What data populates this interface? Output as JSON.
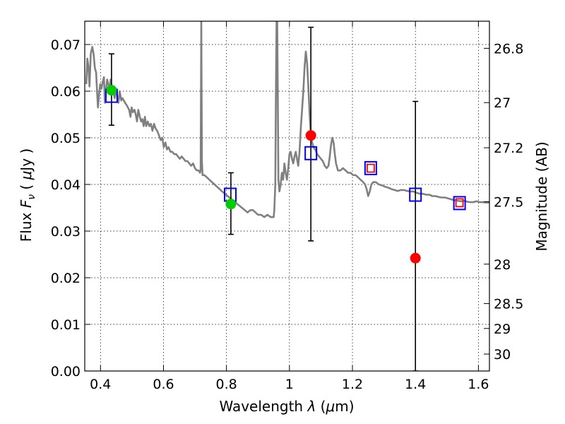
{
  "chart_data": {
    "type": "scatter",
    "xlabel": "Wavelength  λ (μm)",
    "ylabel": "Flux  Fν  ( μJy )",
    "y2label": "Magnitude (AB)",
    "xlim": [
      0.35,
      1.635
    ],
    "ylim": [
      0.0,
      0.075
    ],
    "grid": true,
    "x_ticks": [
      0.4,
      0.6,
      0.8,
      1.0,
      1.2,
      1.4,
      1.6
    ],
    "x_tick_labels": [
      "0.4",
      "0.6",
      "0.8",
      "1",
      "1.2",
      "1.4",
      "1.6"
    ],
    "y_ticks": [
      0.0,
      0.01,
      0.02,
      0.03,
      0.04,
      0.05,
      0.06,
      0.07
    ],
    "y_tick_labels": [
      "0.00",
      "0.01",
      "0.02",
      "0.03",
      "0.04",
      "0.05",
      "0.06",
      "0.07"
    ],
    "y2_ticks": [
      26.8,
      27.0,
      27.2,
      27.5,
      28.0,
      28.5,
      29.0,
      30.0
    ],
    "y2_tick_labels": [
      "26.8",
      "27",
      "27.2",
      "27.5",
      "28",
      "28.5",
      "29",
      "30"
    ],
    "series": [
      {
        "marker": "line",
        "color": "#808080",
        "points": [
          [
            0.355,
            0.0615
          ],
          [
            0.358,
            0.067
          ],
          [
            0.362,
            0.065
          ],
          [
            0.365,
            0.061
          ],
          [
            0.369,
            0.068
          ],
          [
            0.374,
            0.0695
          ],
          [
            0.378,
            0.068
          ],
          [
            0.382,
            0.065
          ],
          [
            0.386,
            0.064
          ],
          [
            0.389,
            0.06
          ],
          [
            0.392,
            0.0565
          ],
          [
            0.395,
            0.059
          ],
          [
            0.399,
            0.0615
          ],
          [
            0.403,
            0.0605
          ],
          [
            0.407,
            0.062
          ],
          [
            0.411,
            0.063
          ],
          [
            0.414,
            0.0575
          ],
          [
            0.417,
            0.06
          ],
          [
            0.421,
            0.0625
          ],
          [
            0.425,
            0.0615
          ],
          [
            0.429,
            0.06
          ],
          [
            0.432,
            0.0625
          ],
          [
            0.436,
            0.0605
          ],
          [
            0.441,
            0.06
          ],
          [
            0.445,
            0.0585
          ],
          [
            0.449,
            0.0605
          ],
          [
            0.453,
            0.059
          ],
          [
            0.457,
            0.0575
          ],
          [
            0.461,
            0.06
          ],
          [
            0.466,
            0.058
          ],
          [
            0.47,
            0.0585
          ],
          [
            0.474,
            0.058
          ],
          [
            0.478,
            0.0575
          ],
          [
            0.483,
            0.057
          ],
          [
            0.487,
            0.0565
          ],
          [
            0.491,
            0.056
          ],
          [
            0.495,
            0.0545
          ],
          [
            0.499,
            0.0565
          ],
          [
            0.503,
            0.0555
          ],
          [
            0.508,
            0.056
          ],
          [
            0.512,
            0.055
          ],
          [
            0.516,
            0.0535
          ],
          [
            0.52,
            0.056
          ],
          [
            0.525,
            0.0545
          ],
          [
            0.529,
            0.0535
          ],
          [
            0.533,
            0.054
          ],
          [
            0.537,
            0.0525
          ],
          [
            0.541,
            0.0545
          ],
          [
            0.545,
            0.0525
          ],
          [
            0.55,
            0.0535
          ],
          [
            0.555,
            0.0525
          ],
          [
            0.56,
            0.053
          ],
          [
            0.565,
            0.0515
          ],
          [
            0.57,
            0.053
          ],
          [
            0.575,
            0.052
          ],
          [
            0.58,
            0.0515
          ],
          [
            0.586,
            0.0505
          ],
          [
            0.591,
            0.0495
          ],
          [
            0.596,
            0.05
          ],
          [
            0.601,
            0.048
          ],
          [
            0.606,
            0.049
          ],
          [
            0.611,
            0.0475
          ],
          [
            0.616,
            0.048
          ],
          [
            0.622,
            0.047
          ],
          [
            0.628,
            0.047
          ],
          [
            0.634,
            0.0465
          ],
          [
            0.64,
            0.0465
          ],
          [
            0.646,
            0.046
          ],
          [
            0.652,
            0.0455
          ],
          [
            0.658,
            0.046
          ],
          [
            0.664,
            0.0455
          ],
          [
            0.67,
            0.045
          ],
          [
            0.676,
            0.045
          ],
          [
            0.682,
            0.0445
          ],
          [
            0.688,
            0.044
          ],
          [
            0.694,
            0.0445
          ],
          [
            0.7,
            0.0435
          ],
          [
            0.706,
            0.043
          ],
          [
            0.712,
            0.043
          ],
          [
            0.716,
            0.0425
          ],
          [
            0.718,
            0.043
          ],
          [
            0.72,
            0.075
          ],
          [
            0.722,
            0.045
          ],
          [
            0.724,
            0.042
          ],
          [
            0.73,
            0.042
          ],
          [
            0.738,
            0.0415
          ],
          [
            0.746,
            0.041
          ],
          [
            0.754,
            0.0405
          ],
          [
            0.762,
            0.04
          ],
          [
            0.77,
            0.0395
          ],
          [
            0.778,
            0.039
          ],
          [
            0.786,
            0.0385
          ],
          [
            0.795,
            0.038
          ],
          [
            0.804,
            0.0375
          ],
          [
            0.813,
            0.037
          ],
          [
            0.822,
            0.0365
          ],
          [
            0.831,
            0.036
          ],
          [
            0.84,
            0.0355
          ],
          [
            0.849,
            0.035
          ],
          [
            0.858,
            0.0345
          ],
          [
            0.867,
            0.034
          ],
          [
            0.876,
            0.0345
          ],
          [
            0.884,
            0.0345
          ],
          [
            0.892,
            0.034
          ],
          [
            0.9,
            0.0335
          ],
          [
            0.91,
            0.0335
          ],
          [
            0.92,
            0.033
          ],
          [
            0.93,
            0.0335
          ],
          [
            0.94,
            0.033
          ],
          [
            0.95,
            0.033
          ],
          [
            0.952,
            0.0345
          ],
          [
            0.955,
            0.04
          ],
          [
            0.957,
            0.06
          ],
          [
            0.959,
            0.075
          ],
          [
            0.961,
            0.075
          ],
          [
            0.963,
            0.06
          ],
          [
            0.965,
            0.041
          ],
          [
            0.968,
            0.0385
          ],
          [
            0.972,
            0.04
          ],
          [
            0.976,
            0.0425
          ],
          [
            0.98,
            0.041
          ],
          [
            0.984,
            0.0445
          ],
          [
            0.988,
            0.0425
          ],
          [
            0.992,
            0.041
          ],
          [
            0.996,
            0.0435
          ],
          [
            1.0,
            0.0465
          ],
          [
            1.004,
            0.047
          ],
          [
            1.008,
            0.0455
          ],
          [
            1.012,
            0.0445
          ],
          [
            1.016,
            0.046
          ],
          [
            1.02,
            0.047
          ],
          [
            1.024,
            0.0455
          ],
          [
            1.028,
            0.044
          ],
          [
            1.032,
            0.047
          ],
          [
            1.036,
            0.052
          ],
          [
            1.04,
            0.056
          ],
          [
            1.044,
            0.06
          ],
          [
            1.048,
            0.065
          ],
          [
            1.052,
            0.0685
          ],
          [
            1.056,
            0.066
          ],
          [
            1.06,
            0.061
          ],
          [
            1.064,
            0.055
          ],
          [
            1.068,
            0.0505
          ],
          [
            1.072,
            0.049
          ],
          [
            1.076,
            0.048
          ],
          [
            1.082,
            0.0475
          ],
          [
            1.088,
            0.0465
          ],
          [
            1.094,
            0.046
          ],
          [
            1.1,
            0.0455
          ],
          [
            1.106,
            0.045
          ],
          [
            1.112,
            0.044
          ],
          [
            1.118,
            0.0435
          ],
          [
            1.124,
            0.044
          ],
          [
            1.128,
            0.046
          ],
          [
            1.132,
            0.0485
          ],
          [
            1.136,
            0.05
          ],
          [
            1.14,
            0.049
          ],
          [
            1.144,
            0.0465
          ],
          [
            1.148,
            0.0445
          ],
          [
            1.154,
            0.043
          ],
          [
            1.162,
            0.043
          ],
          [
            1.17,
            0.0435
          ],
          [
            1.178,
            0.043
          ],
          [
            1.186,
            0.0425
          ],
          [
            1.194,
            0.0425
          ],
          [
            1.202,
            0.042
          ],
          [
            1.21,
            0.042
          ],
          [
            1.218,
            0.0415
          ],
          [
            1.226,
            0.041
          ],
          [
            1.234,
            0.0405
          ],
          [
            1.24,
            0.04
          ],
          [
            1.245,
            0.039
          ],
          [
            1.25,
            0.0375
          ],
          [
            1.255,
            0.0385
          ],
          [
            1.26,
            0.04
          ],
          [
            1.266,
            0.0405
          ],
          [
            1.274,
            0.0405
          ],
          [
            1.284,
            0.04
          ],
          [
            1.294,
            0.0398
          ],
          [
            1.304,
            0.0395
          ],
          [
            1.314,
            0.0393
          ],
          [
            1.324,
            0.039
          ],
          [
            1.334,
            0.0388
          ],
          [
            1.344,
            0.0386
          ],
          [
            1.354,
            0.0388
          ],
          [
            1.364,
            0.0388
          ],
          [
            1.374,
            0.0386
          ],
          [
            1.384,
            0.0385
          ],
          [
            1.394,
            0.0385
          ],
          [
            1.404,
            0.0382
          ],
          [
            1.414,
            0.038
          ],
          [
            1.424,
            0.038
          ],
          [
            1.434,
            0.0378
          ],
          [
            1.444,
            0.0378
          ],
          [
            1.454,
            0.0375
          ],
          [
            1.464,
            0.0375
          ],
          [
            1.474,
            0.0373
          ],
          [
            1.484,
            0.0372
          ],
          [
            1.494,
            0.0372
          ],
          [
            1.504,
            0.037
          ],
          [
            1.514,
            0.0368
          ],
          [
            1.524,
            0.0366
          ],
          [
            1.534,
            0.0365
          ],
          [
            1.544,
            0.0364
          ],
          [
            1.554,
            0.0365
          ],
          [
            1.564,
            0.0363
          ],
          [
            1.574,
            0.0362
          ],
          [
            1.584,
            0.0362
          ],
          [
            1.594,
            0.0364
          ],
          [
            1.604,
            0.0362
          ],
          [
            1.614,
            0.0362
          ],
          [
            1.624,
            0.0361
          ],
          [
            1.635,
            0.0361
          ]
        ]
      },
      {
        "marker": "square",
        "color": "#0000ff",
        "points": [
          [
            0.435,
            0.059
          ],
          [
            0.812,
            0.0378
          ],
          [
            1.068,
            0.0467
          ],
          [
            1.258,
            0.0435
          ],
          [
            1.4,
            0.0378
          ],
          [
            1.54,
            0.036
          ]
        ]
      },
      {
        "marker": "square-small",
        "color": "#ff0000",
        "points": [
          [
            1.258,
            0.0434
          ],
          [
            1.54,
            0.036
          ]
        ]
      },
      {
        "marker": "circle",
        "color": "#00cc00",
        "points": [
          [
            0.435,
            0.0602
          ],
          [
            0.814,
            0.0358
          ]
        ]
      },
      {
        "marker": "circle",
        "color": "#ff0000",
        "points": [
          [
            1.068,
            0.0505
          ],
          [
            1.4,
            0.0242
          ]
        ]
      },
      {
        "marker": "errorbar",
        "color": "#000000",
        "bars": [
          {
            "x": 0.435,
            "low": 0.0527,
            "high": 0.068
          },
          {
            "x": 0.814,
            "low": 0.0293,
            "high": 0.0425
          },
          {
            "x": 1.068,
            "low": 0.0279,
            "high": 0.0737
          },
          {
            "x": 1.4,
            "low": 0.0,
            "high": 0.0578
          }
        ]
      }
    ]
  }
}
